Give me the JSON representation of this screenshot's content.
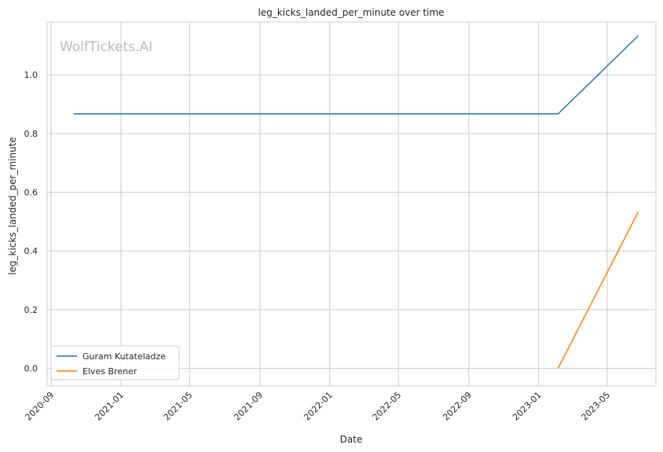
{
  "chart_data": {
    "type": "line",
    "title": "leg_kicks_landed_per_minute over time",
    "xlabel": "Date",
    "ylabel": "leg_kicks_landed_per_minute",
    "watermark": "WolfTickets.AI",
    "x_ticks": [
      "2020-09",
      "2021-01",
      "2021-05",
      "2021-09",
      "2022-01",
      "2022-05",
      "2022-09",
      "2023-01",
      "2023-05"
    ],
    "y_ticks": [
      "0.0",
      "0.2",
      "0.4",
      "0.6",
      "0.8",
      "1.0"
    ],
    "xlim": [
      "2020-08-25",
      "2023-07-25"
    ],
    "ylim": [
      -0.06,
      1.18
    ],
    "grid": true,
    "legend_position": "lower-left",
    "series": [
      {
        "name": "Guram Kutateladze",
        "color": "#1f77b4",
        "points": [
          {
            "x": "2020-10-10",
            "y": 0.867
          },
          {
            "x": "2023-02-04",
            "y": 0.867
          },
          {
            "x": "2023-06-24",
            "y": 1.133
          }
        ]
      },
      {
        "name": "Elves Brener",
        "color": "#ff7f0e",
        "points": [
          {
            "x": "2023-02-04",
            "y": 0.0
          },
          {
            "x": "2023-06-24",
            "y": 0.533
          }
        ]
      }
    ]
  }
}
